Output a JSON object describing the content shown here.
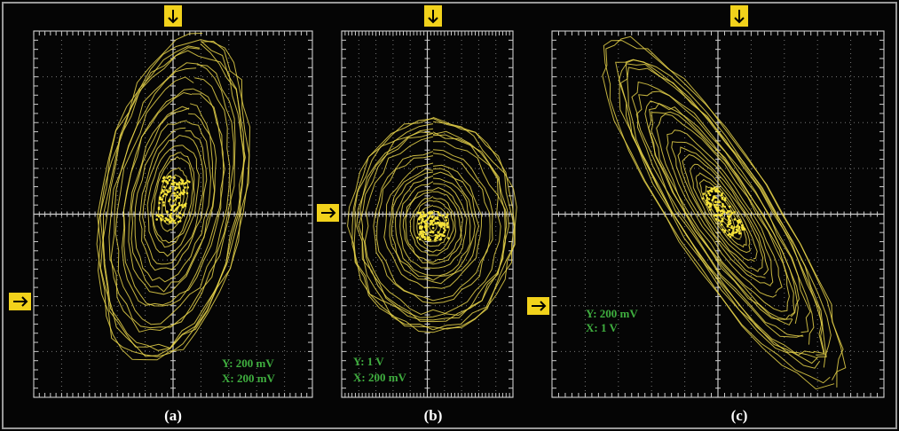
{
  "panels": [
    {
      "label": "(a)",
      "y_scale": "Y: 200 mV",
      "x_scale": "X: 200 mV"
    },
    {
      "label": "(b)",
      "y_scale": "Y: 1 V",
      "x_scale": "X: 200 mV"
    },
    {
      "label": "(c)",
      "y_scale": "Y: 200 mV",
      "x_scale": "X: 1 V"
    }
  ]
}
